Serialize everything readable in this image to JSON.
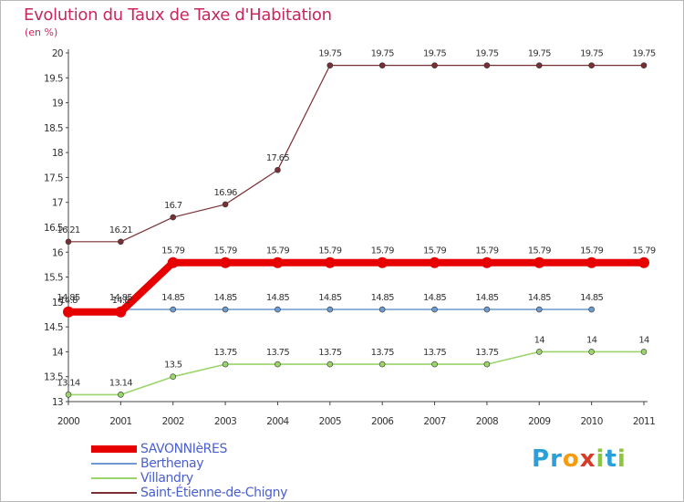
{
  "title": "Evolution du Taux de Taxe d'Habitation",
  "subtitle": "(en %)",
  "logo": {
    "letters": [
      {
        "ch": "P",
        "color": "#2a9fd8"
      },
      {
        "ch": "r",
        "color": "#2a9fd8"
      },
      {
        "ch": "o",
        "color": "#f39c12"
      },
      {
        "ch": "x",
        "color": "#d93b2b"
      },
      {
        "ch": "i",
        "color": "#8cc63f"
      },
      {
        "ch": "t",
        "color": "#2a9fd8"
      },
      {
        "ch": "i",
        "color": "#8cc63f"
      }
    ]
  },
  "chart_data": {
    "type": "line",
    "x": [
      "2000",
      "2001",
      "2002",
      "2003",
      "2004",
      "2005",
      "2006",
      "2007",
      "2008",
      "2009",
      "2010",
      "2011"
    ],
    "ylim": [
      13,
      20
    ],
    "yticks": [
      "13",
      "13.5",
      "14",
      "14.5",
      "15",
      "15.5",
      "16",
      "16.5",
      "17",
      "17.5",
      "18",
      "18.5",
      "19",
      "19.5",
      "20"
    ],
    "grid": false,
    "legend_position": "bottom-left",
    "series": [
      {
        "name": "SAVONNIèRES",
        "color": "#e60000",
        "values": [
          14.8,
          14.8,
          15.79,
          15.79,
          15.79,
          15.79,
          15.79,
          15.79,
          15.79,
          15.79,
          15.79,
          15.79
        ],
        "labels": [
          "14.8",
          "14.8",
          "15.79",
          "15.79",
          "15.79",
          "15.79",
          "15.79",
          "15.79",
          "15.79",
          "15.79",
          "15.79",
          "15.79"
        ]
      },
      {
        "name": "Berthenay",
        "color": "#6b9bd1",
        "values": [
          14.85,
          14.85,
          14.85,
          14.85,
          14.85,
          14.85,
          14.85,
          14.85,
          14.85,
          14.85,
          14.85,
          null
        ],
        "labels": [
          "14.85",
          "14.85",
          "14.85",
          "14.85",
          "14.85",
          "14.85",
          "14.85",
          "14.85",
          "14.85",
          "14.85",
          "14.85",
          null
        ]
      },
      {
        "name": "Villandry",
        "color": "#9bd46a",
        "values": [
          13.14,
          13.14,
          13.5,
          13.75,
          13.75,
          13.75,
          13.75,
          13.75,
          13.75,
          14,
          14,
          14
        ],
        "labels": [
          "13.14",
          "13.14",
          "13.5",
          "13.75",
          "13.75",
          "13.75",
          "13.75",
          "13.75",
          "13.75",
          "14",
          "14",
          "14"
        ]
      },
      {
        "name": "Saint-Étienne-de-Chigny",
        "color": "#7a2f35",
        "values": [
          16.21,
          16.21,
          16.7,
          16.96,
          17.65,
          19.75,
          19.75,
          19.75,
          19.75,
          19.75,
          19.75,
          19.75
        ],
        "labels": [
          "16.21",
          "16.21",
          "16.7",
          "16.96",
          "17.65",
          "19.75",
          "19.75",
          "19.75",
          "19.75",
          "19.75",
          "19.75",
          "19.75"
        ]
      }
    ]
  }
}
